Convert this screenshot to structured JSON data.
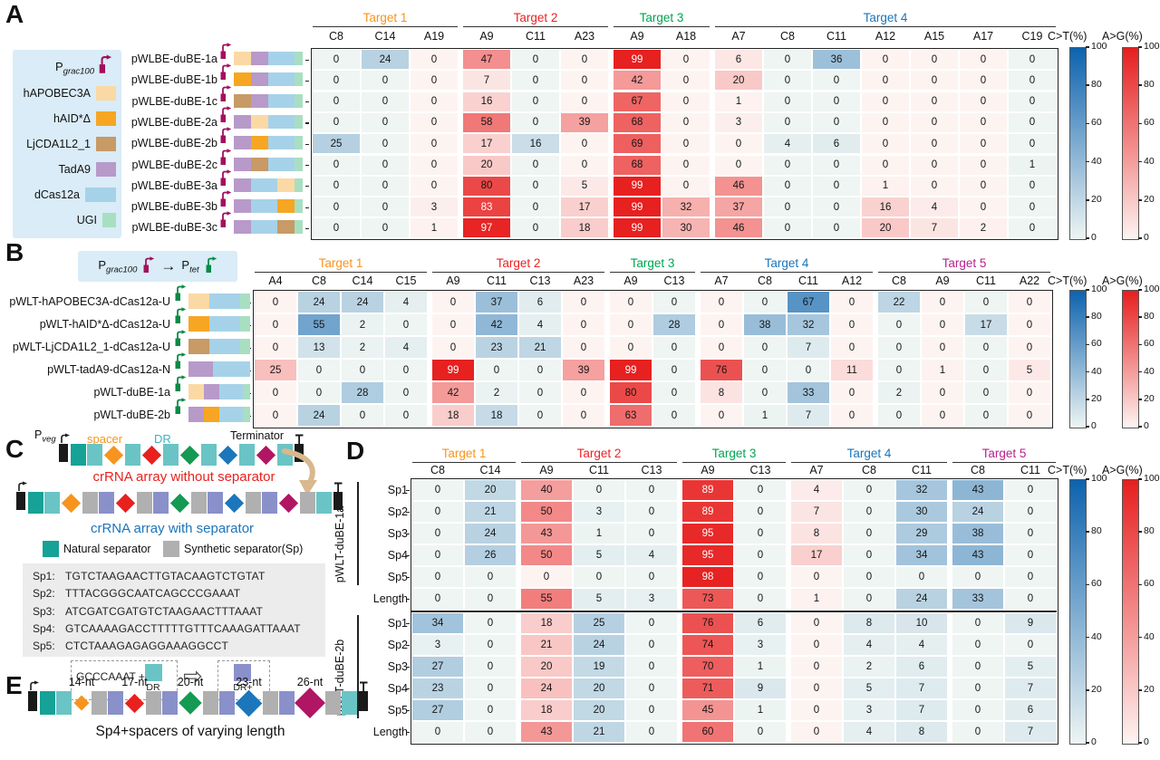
{
  "figure": {
    "colorbar": {
      "ct_label": "C>T(%)",
      "ag_label": "A>G(%)",
      "ticks": [
        100,
        80,
        60,
        40,
        20,
        0
      ]
    },
    "palette": {
      "apobec": "#fbd9a5",
      "aid": "#f6a623",
      "ljcda": "#c79a66",
      "tada9": "#b79ac9",
      "dcas12a": "#a6d2e9",
      "ugi": "#a8dfc1",
      "grac": "#a2105c",
      "tet": "#0b8a45",
      "natsep": "#16a296",
      "dr": "#6ac4c5",
      "synsep": "#b0b0b0",
      "drp": "#8a90ca",
      "dia": [
        "#f7941d",
        "#e8211f",
        "#149a52",
        "#1c76bc",
        "#b01663"
      ],
      "target": [
        "#f7941d",
        "#ed2224",
        "#00a551",
        "#1b75bb",
        "#b9208c"
      ],
      "blue_lo": "#eef5f3",
      "blue_hi": "#0d62ae",
      "red_lo": "#fdf4f2",
      "red_hi": "#e71e1e",
      "legend_bg": "#d9ecf7",
      "seq_box_bg": "#ececec",
      "arrow_tan": "#d9b88d"
    },
    "panelA": {
      "letter": "A",
      "legend": {
        "promoter": {
          "text": "P",
          "sub": "grac100",
          "key": "grac"
        },
        "items": [
          {
            "label": "hAPOBEC3A",
            "key": "apobec"
          },
          {
            "label": "hAID*Δ",
            "key": "aid"
          },
          {
            "label": "LjCDA1L2_1",
            "key": "ljcda"
          },
          {
            "label": "TadA9",
            "key": "tada9"
          },
          {
            "label": "dCas12a",
            "key": "dcas12a"
          },
          {
            "label": "UGI",
            "key": "ugi"
          }
        ]
      }
    },
    "panelB": {
      "letter": "B",
      "legend": {
        "from": "P",
        "from_sub": "grac100",
        "arrow": "→",
        "to": "P",
        "to_sub": "tet"
      }
    },
    "panelC": {
      "letter": "C",
      "pveg": "P",
      "pveg_sub": "veg",
      "spacer_label": "spacer",
      "dr_label": "DR",
      "terminator_label": "Terminator",
      "caption_without": "crRNA array without separator",
      "caption_with": "crRNA array with separator",
      "natsep_label": "Natural separator",
      "synsep_label": "Synthetic separator(Sp)",
      "separators": [
        {
          "name": "Sp1:",
          "seq": "TGTCTAAGAACTTGTACAAGTCTGTAT"
        },
        {
          "name": "Sp2:",
          "seq": "TTTACGGGCAATCAGCCCGAAAT"
        },
        {
          "name": "Sp3:",
          "seq": "ATCGATCGATGTCTAAGAACTTTAAAT"
        },
        {
          "name": "Sp4:",
          "seq": "GTCAAAAGACCTTTTTGTTTCAAAGATTAAAT"
        },
        {
          "name": "Sp5:",
          "seq": "CTCTAAAGAGAGGAAAGGCCT"
        }
      ],
      "insert_text": "GCCCAAAT +",
      "dr_box_label": "DR",
      "drp_box_label": "DR+",
      "array_without": [
        "prom",
        "natsep",
        "dr",
        "dia0",
        "dr",
        "dia1",
        "dr",
        "dia2",
        "dr",
        "dia3",
        "dr",
        "dia4",
        "dr",
        "term"
      ],
      "array_with": [
        "prom",
        "natsep",
        "dr",
        "dia0",
        "synsep",
        "drp",
        "dia1",
        "synsep",
        "drp",
        "dia2",
        "synsep",
        "drp",
        "dia3",
        "synsep",
        "drp",
        "dia4",
        "synsep",
        "dr",
        "term"
      ]
    },
    "panelD": {
      "letter": "D"
    },
    "panelE": {
      "letter": "E",
      "nt_labels": [
        "14-nt",
        "17-nt",
        "20-nt",
        "23-nt",
        "26-nt"
      ],
      "dia_sizes": [
        12,
        15,
        18,
        21,
        24
      ],
      "caption": "Sp4+spacers of varying length",
      "array": [
        "prom",
        "natsep",
        "dr",
        "dia0",
        "synsep",
        "drp",
        "dia1",
        "synsep",
        "drp",
        "dia2",
        "synsep",
        "drp",
        "dia3",
        "synsep",
        "drp",
        "dia4",
        "synsep",
        "dr",
        "term"
      ]
    }
  },
  "chart_data": [
    {
      "panel": "A",
      "type": "heatmap",
      "value_unit": "percent",
      "groups": [
        {
          "label": "Target 1",
          "cols": [
            "C8",
            "C14",
            "A19"
          ]
        },
        {
          "label": "Target 2",
          "cols": [
            "A9",
            "C11",
            "A23"
          ]
        },
        {
          "label": "Target 3",
          "cols": [
            "A9",
            "A18"
          ]
        },
        {
          "label": "Target 4",
          "cols": [
            "A7",
            "C8",
            "C11",
            "A12",
            "A15",
            "A17",
            "C19"
          ]
        }
      ],
      "rows": [
        {
          "label": "pWLBE-duBE-1a",
          "construct": [
            "grac",
            "apobec",
            "tada9",
            "dcas12a",
            "ugi"
          ],
          "values": [
            0,
            24,
            0,
            47,
            0,
            0,
            99,
            0,
            6,
            0,
            36,
            0,
            0,
            0,
            0
          ]
        },
        {
          "label": "pWLBE-duBE-1b",
          "construct": [
            "grac",
            "aid",
            "tada9",
            "dcas12a",
            "ugi"
          ],
          "values": [
            0,
            0,
            0,
            7,
            0,
            0,
            42,
            0,
            20,
            0,
            0,
            0,
            0,
            0,
            0
          ]
        },
        {
          "label": "pWLBE-duBE-1c",
          "construct": [
            "grac",
            "ljcda",
            "tada9",
            "dcas12a",
            "ugi"
          ],
          "values": [
            0,
            0,
            0,
            16,
            0,
            0,
            67,
            0,
            1,
            0,
            0,
            0,
            0,
            0,
            0
          ]
        },
        {
          "label": "pWLBE-duBE-2a",
          "construct": [
            "grac",
            "tada9",
            "apobec",
            "dcas12a",
            "ugi"
          ],
          "values": [
            0,
            0,
            0,
            58,
            0,
            39,
            68,
            0,
            3,
            0,
            0,
            0,
            0,
            0,
            0
          ]
        },
        {
          "label": "pWLBE-duBE-2b",
          "construct": [
            "grac",
            "tada9",
            "aid",
            "dcas12a",
            "ugi"
          ],
          "values": [
            25,
            0,
            0,
            17,
            16,
            0,
            69,
            0,
            0,
            4,
            6,
            0,
            0,
            0,
            0
          ]
        },
        {
          "label": "pWLBE-duBE-2c",
          "construct": [
            "grac",
            "tada9",
            "ljcda",
            "dcas12a",
            "ugi"
          ],
          "values": [
            0,
            0,
            0,
            20,
            0,
            0,
            68,
            0,
            0,
            0,
            0,
            0,
            0,
            0,
            1
          ]
        },
        {
          "label": "pWLBE-duBE-3a",
          "construct": [
            "grac",
            "tada9",
            "dcas12a",
            "apobec",
            "ugi"
          ],
          "values": [
            0,
            0,
            0,
            80,
            0,
            5,
            99,
            0,
            46,
            0,
            0,
            1,
            0,
            0,
            0
          ]
        },
        {
          "label": "pWLBE-duBE-3b",
          "construct": [
            "grac",
            "tada9",
            "dcas12a",
            "aid",
            "ugi"
          ],
          "values": [
            0,
            0,
            3,
            83,
            0,
            17,
            99,
            32,
            37,
            0,
            0,
            16,
            4,
            0,
            0
          ]
        },
        {
          "label": "pWLBE-duBE-3c",
          "construct": [
            "grac",
            "tada9",
            "dcas12a",
            "ljcda",
            "ugi"
          ],
          "values": [
            0,
            0,
            1,
            97,
            0,
            18,
            99,
            30,
            46,
            0,
            0,
            20,
            7,
            2,
            0
          ]
        }
      ]
    },
    {
      "panel": "B",
      "type": "heatmap",
      "value_unit": "percent",
      "groups": [
        {
          "label": "Target 1",
          "cols": [
            "A4",
            "C8",
            "C14",
            "C15"
          ]
        },
        {
          "label": "Target 2",
          "cols": [
            "A9",
            "C11",
            "C13",
            "A23"
          ]
        },
        {
          "label": "Target 3",
          "cols": [
            "A9",
            "C13"
          ]
        },
        {
          "label": "Target 4",
          "cols": [
            "A7",
            "C8",
            "C11",
            "A12"
          ]
        },
        {
          "label": "Target 5",
          "cols": [
            "C8",
            "A9",
            "C11",
            "A22"
          ]
        }
      ],
      "rows": [
        {
          "label": "pWLT-hAPOBEC3A-dCas12a-U",
          "construct": [
            "tet",
            "apobec",
            "dcas12a",
            "ugi"
          ],
          "values": [
            0,
            24,
            24,
            4,
            0,
            37,
            6,
            0,
            0,
            0,
            0,
            0,
            67,
            0,
            22,
            0,
            0,
            0
          ]
        },
        {
          "label": "pWLT-hAID*Δ-dCas12a-U",
          "construct": [
            "tet",
            "aid",
            "dcas12a",
            "ugi"
          ],
          "values": [
            0,
            55,
            2,
            0,
            0,
            42,
            4,
            0,
            0,
            28,
            0,
            38,
            32,
            0,
            0,
            0,
            17,
            0
          ]
        },
        {
          "label": "pWLT-LjCDA1L2_1-dCas12a-U",
          "construct": [
            "tet",
            "ljcda",
            "dcas12a",
            "ugi"
          ],
          "values": [
            0,
            13,
            2,
            4,
            0,
            23,
            21,
            0,
            0,
            0,
            0,
            0,
            7,
            0,
            0,
            0,
            0,
            0
          ]
        },
        {
          "label": "pWLT-tadA9-dCas12a-N",
          "construct": [
            "tet",
            "tada9",
            "dcas12a"
          ],
          "values": [
            25,
            0,
            0,
            0,
            99,
            0,
            0,
            39,
            99,
            0,
            76,
            0,
            0,
            11,
            0,
            1,
            0,
            5
          ]
        },
        {
          "label": "pWLT-duBE-1a",
          "construct": [
            "tet",
            "apobec",
            "tada9",
            "dcas12a",
            "ugi"
          ],
          "values": [
            0,
            0,
            28,
            0,
            42,
            2,
            0,
            0,
            80,
            0,
            8,
            0,
            33,
            0,
            2,
            0,
            0,
            0
          ]
        },
        {
          "label": "pWLT-duBE-2b",
          "construct": [
            "tet",
            "tada9",
            "aid",
            "dcas12a",
            "ugi"
          ],
          "values": [
            0,
            24,
            0,
            0,
            18,
            18,
            0,
            0,
            63,
            0,
            0,
            1,
            7,
            0,
            0,
            0,
            0,
            0
          ]
        }
      ]
    },
    {
      "panel": "D",
      "type": "heatmap",
      "value_unit": "percent",
      "groups": [
        {
          "label": "Target 1",
          "cols": [
            "C8",
            "C14"
          ]
        },
        {
          "label": "Target 2",
          "cols": [
            "A9",
            "C11",
            "C13"
          ]
        },
        {
          "label": "Target 3",
          "cols": [
            "A9",
            "C13"
          ]
        },
        {
          "label": "Target 4",
          "cols": [
            "A7",
            "C8",
            "C11"
          ]
        },
        {
          "label": "Target 5",
          "cols": [
            "C8",
            "C11"
          ]
        }
      ],
      "row_groups": [
        {
          "label": "pWLT-duBE-1a",
          "rows": [
            {
              "label": "Sp1",
              "values": [
                0,
                20,
                40,
                0,
                0,
                89,
                0,
                4,
                0,
                32,
                43,
                0
              ]
            },
            {
              "label": "Sp2",
              "values": [
                0,
                21,
                50,
                3,
                0,
                89,
                0,
                7,
                0,
                30,
                24,
                0
              ]
            },
            {
              "label": "Sp3",
              "values": [
                0,
                24,
                43,
                1,
                0,
                95,
                0,
                8,
                0,
                29,
                38,
                0
              ]
            },
            {
              "label": "Sp4",
              "values": [
                0,
                26,
                50,
                5,
                4,
                95,
                0,
                17,
                0,
                34,
                43,
                0
              ]
            },
            {
              "label": "Sp5",
              "values": [
                0,
                0,
                0,
                0,
                0,
                98,
                0,
                0,
                0,
                0,
                0,
                0
              ]
            },
            {
              "label": "Length",
              "values": [
                0,
                0,
                55,
                5,
                3,
                73,
                0,
                1,
                0,
                24,
                33,
                0
              ]
            }
          ]
        },
        {
          "label": "pWLT-duBE-2b",
          "rows": [
            {
              "label": "Sp1",
              "values": [
                34,
                0,
                18,
                25,
                0,
                76,
                6,
                0,
                8,
                10,
                0,
                9
              ]
            },
            {
              "label": "Sp2",
              "values": [
                3,
                0,
                21,
                24,
                0,
                74,
                3,
                0,
                4,
                4,
                0,
                0
              ]
            },
            {
              "label": "Sp3",
              "values": [
                27,
                0,
                20,
                19,
                0,
                70,
                1,
                0,
                2,
                6,
                0,
                5
              ]
            },
            {
              "label": "Sp4",
              "values": [
                23,
                0,
                24,
                20,
                0,
                71,
                9,
                0,
                5,
                7,
                0,
                7
              ]
            },
            {
              "label": "Sp5",
              "values": [
                27,
                0,
                18,
                20,
                0,
                45,
                1,
                0,
                3,
                7,
                0,
                6
              ]
            },
            {
              "label": "Length",
              "values": [
                0,
                0,
                43,
                21,
                0,
                60,
                0,
                0,
                4,
                8,
                0,
                7
              ]
            }
          ]
        }
      ]
    }
  ]
}
